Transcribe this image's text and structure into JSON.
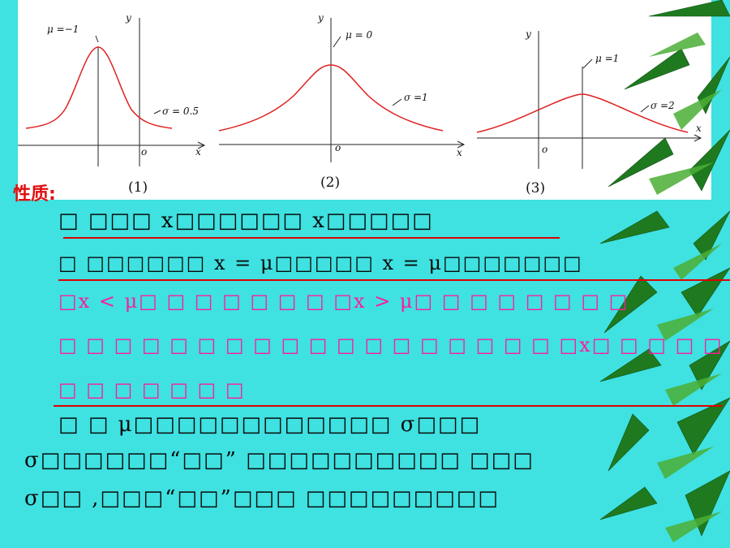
{
  "section_title": "性质:",
  "figures": [
    {
      "caption": "(1)",
      "mu_label": "μ =−1",
      "sigma_label": "σ = 0.5",
      "x_axis": "x",
      "y_axis": "y",
      "origin": "o"
    },
    {
      "caption": "(2)",
      "mu_label": "μ = 0",
      "sigma_label": "σ =1",
      "x_axis": "x",
      "y_axis": "y",
      "origin": "o"
    },
    {
      "caption": "(3)",
      "mu_label": "μ =1",
      "sigma_label": "σ =2",
      "x_axis": "x",
      "y_axis": "y",
      "origin": "o"
    }
  ],
  "body_lines": [
    "□ □□□  x□□□□□□    x□□□□□",
    "□ □□□□□□    x = μ□□□□□    x = μ□□□□□□□",
    "□x < μ□ □ □ □ □ □ □ □x > μ□ □ □ □ □ □ □ □",
    "□ □ □ □ □ □ □ □ □ □ □ □ □ □ □ □ □ □ □x□ □ □ □ □ □",
    "□ □ □ □ □ □ □",
    "□ □ μ□□□□□□□□□□□□        σ□□□",
    "σ□□□□□□“□□”        □□□□□□□□□□       □□□",
    "σ□□ ,□□□“□□”□□□        □□□□□□□□□"
  ],
  "colors": {
    "background": "#3fe1e1",
    "title": "#e01010",
    "highlight": "#ff1aa0",
    "curve": "#e02020",
    "rule": "#e00000"
  }
}
